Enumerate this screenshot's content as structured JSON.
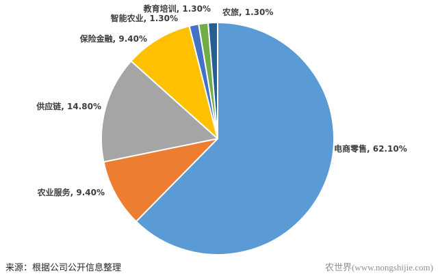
{
  "chart_data": {
    "type": "pie",
    "title": "",
    "direction": "clockwise",
    "start_angle_deg": 0,
    "legend": "none",
    "labels_position": "outside-end",
    "label_format": "{name}, {value}%",
    "values_sum_shown": 99.6,
    "slices": [
      {
        "name": "电商零售",
        "value": 62.1,
        "percent_label": "电商零售, 62.10%",
        "color": "#5B9BD5"
      },
      {
        "name": "农业服务",
        "value": 9.4,
        "percent_label": "农业服务, 9.40%",
        "color": "#ED7D31"
      },
      {
        "name": "供应链",
        "value": 14.8,
        "percent_label": "供应链, 14.80%",
        "color": "#A5A5A5"
      },
      {
        "name": "保险金融",
        "value": 9.4,
        "percent_label": "保险金融, 9.40%",
        "color": "#FFC000"
      },
      {
        "name": "智能农业",
        "value": 1.3,
        "percent_label": "智能农业, 1.30%",
        "color": "#4472C4"
      },
      {
        "name": "教育培训",
        "value": 1.3,
        "percent_label": "教育培训, 1.30%",
        "color": "#70AD47"
      },
      {
        "name": "农旅",
        "value": 1.3,
        "percent_label": "农旅, 1.30%",
        "color": "#255E91"
      }
    ]
  },
  "footer": {
    "source": "来源：根据公司公开信息整理",
    "credit": "农世界(www.nongshijie.com)"
  }
}
